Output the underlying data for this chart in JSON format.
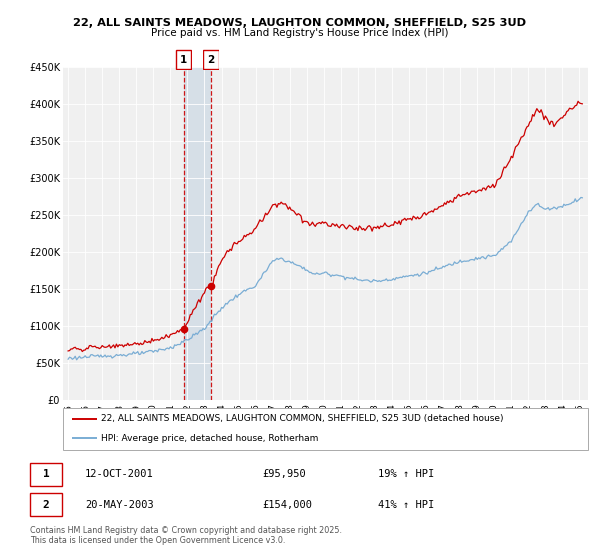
{
  "title_line1": "22, ALL SAINTS MEADOWS, LAUGHTON COMMON, SHEFFIELD, S25 3UD",
  "title_line2": "Price paid vs. HM Land Registry's House Price Index (HPI)",
  "property_color": "#cc0000",
  "hpi_color": "#7aadd4",
  "background_color": "#ffffff",
  "plot_bg_color": "#f0f0f0",
  "ylim": [
    0,
    450000
  ],
  "yticks": [
    0,
    50000,
    100000,
    150000,
    200000,
    250000,
    300000,
    350000,
    400000,
    450000
  ],
  "ytick_labels": [
    "£0",
    "£50K",
    "£100K",
    "£150K",
    "£200K",
    "£250K",
    "£300K",
    "£350K",
    "£400K",
    "£450K"
  ],
  "xlim_start": 1994.7,
  "xlim_end": 2025.5,
  "xtick_years": [
    1995,
    1996,
    1997,
    1998,
    1999,
    2000,
    2001,
    2002,
    2003,
    2004,
    2005,
    2006,
    2007,
    2008,
    2009,
    2010,
    2011,
    2012,
    2013,
    2014,
    2015,
    2016,
    2017,
    2018,
    2019,
    2020,
    2021,
    2022,
    2023,
    2024,
    2025
  ],
  "legend_property": "22, ALL SAINTS MEADOWS, LAUGHTON COMMON, SHEFFIELD, S25 3UD (detached house)",
  "legend_hpi": "HPI: Average price, detached house, Rotherham",
  "sale1_date": "12-OCT-2001",
  "sale1_price": "£95,950",
  "sale1_hpi": "19% ↑ HPI",
  "sale1_x": 2001.78,
  "sale1_y": 95950,
  "sale2_date": "20-MAY-2003",
  "sale2_price": "£154,000",
  "sale2_hpi": "41% ↑ HPI",
  "sale2_x": 2003.38,
  "sale2_y": 154000,
  "footnote1": "Contains HM Land Registry data © Crown copyright and database right 2025.",
  "footnote2": "This data is licensed under the Open Government Licence v3.0.",
  "shade_x1": 2001.78,
  "shade_x2": 2003.38,
  "hpi_keypoints_x": [
    1995.0,
    1996.0,
    1997.0,
    1998.0,
    1999.0,
    2000.0,
    2001.0,
    2002.0,
    2003.0,
    2004.0,
    2005.0,
    2006.0,
    2007.0,
    2007.5,
    2008.5,
    2009.5,
    2010.0,
    2011.0,
    2012.0,
    2013.0,
    2014.0,
    2015.0,
    2016.0,
    2017.0,
    2018.0,
    2019.0,
    2020.0,
    2021.0,
    2022.0,
    2022.5,
    2023.0,
    2024.0,
    2025.25
  ],
  "hpi_keypoints_y": [
    57000,
    58500,
    60000,
    61000,
    63000,
    66000,
    71000,
    82000,
    97000,
    125000,
    143000,
    155000,
    188000,
    192000,
    182000,
    170000,
    172000,
    168000,
    163000,
    161000,
    164000,
    168000,
    172000,
    180000,
    188000,
    192000,
    195000,
    215000,
    255000,
    265000,
    258000,
    262000,
    275000
  ],
  "prop_keypoints_x": [
    1995.0,
    1996.0,
    1997.0,
    1998.0,
    1999.0,
    2000.0,
    2001.0,
    2001.78,
    2002.3,
    2003.0,
    2003.38,
    2004.0,
    2005.0,
    2006.0,
    2007.0,
    2007.5,
    2008.5,
    2009.0,
    2010.0,
    2011.0,
    2012.0,
    2013.0,
    2014.0,
    2015.0,
    2016.0,
    2017.0,
    2018.0,
    2019.0,
    2020.0,
    2021.0,
    2022.0,
    2022.5,
    2023.0,
    2023.5,
    2024.0,
    2024.5,
    2025.0,
    2025.25
  ],
  "prop_keypoints_y": [
    68000,
    70000,
    72000,
    74000,
    76000,
    81000,
    87000,
    95950,
    120000,
    145000,
    154000,
    190000,
    215000,
    232000,
    262000,
    268000,
    252000,
    238000,
    240000,
    236000,
    232000,
    233000,
    237000,
    244000,
    252000,
    263000,
    277000,
    282000,
    290000,
    328000,
    372000,
    393000,
    382000,
    372000,
    383000,
    395000,
    402000,
    400000
  ]
}
